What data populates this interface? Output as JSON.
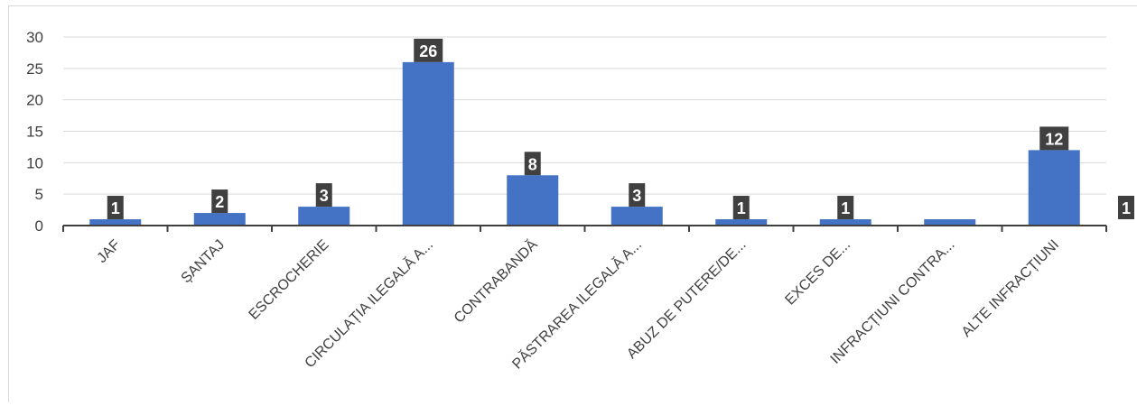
{
  "chart_data": {
    "type": "bar",
    "categories": [
      "JAF",
      "ȘANTAJ",
      "ESCROCHERIE",
      "CIRCULAȚIA ILEGALĂ A...",
      "CONTRABANDĂ",
      "PĂSTRAREA ILEGALĂ A...",
      "ABUZ DE PUTERE/DE...",
      "EXCES DE...",
      "INFRACȚIUNI CONTRA...",
      "ALTE INFRACȚIUNI"
    ],
    "values": [
      1,
      2,
      3,
      26,
      8,
      3,
      1,
      1,
      1,
      12
    ],
    "data_labels": [
      "1",
      "2",
      "3",
      "26",
      "8",
      "3",
      "1",
      "1",
      "",
      "12"
    ],
    "extra_label": "1",
    "y_ticks": [
      "0",
      "5",
      "10",
      "15",
      "20",
      "25",
      "30"
    ],
    "ylim": [
      0,
      30
    ],
    "grid": true,
    "colors": {
      "bar": "#4472c4",
      "label_bg": "#404040",
      "grid": "#d9d9d9",
      "axis": "#404040"
    }
  }
}
